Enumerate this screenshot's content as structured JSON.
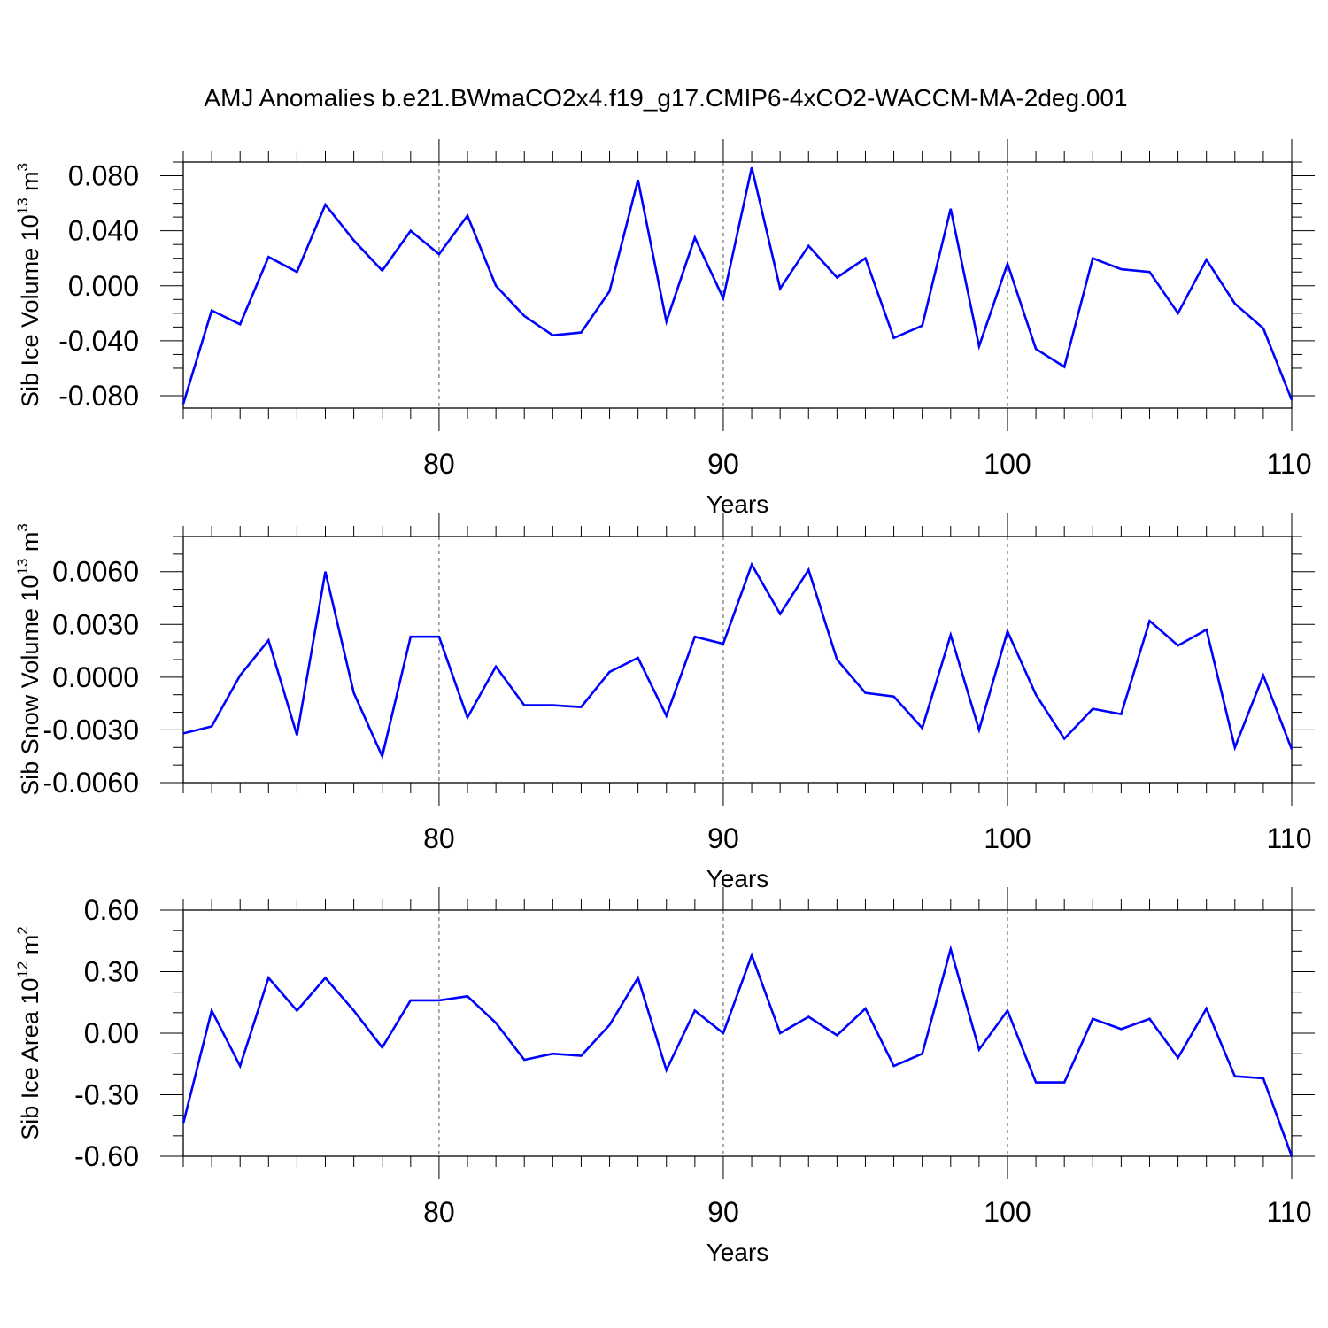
{
  "title": "AMJ Anomalies b.e21.BWmaCO2x4.f19_g17.CMIP6-4xCO2-WACCM-MA-2deg.001",
  "line_color": "#0000ff",
  "chart_data": [
    {
      "type": "line",
      "xlabel": "Years",
      "ylabel_base": "Sib Ice Volume 10",
      "ylabel_exp": "13",
      "ylabel_unit": " m",
      "ylabel_unit_exp": "3",
      "xlim": [
        71,
        110
      ],
      "ylim": [
        -0.089,
        0.09
      ],
      "x_ticks": [
        80,
        90,
        100,
        110
      ],
      "y_ticks": [
        -0.08,
        -0.04,
        0.0,
        0.04,
        0.08
      ],
      "y_tick_labels": [
        "-0.080",
        "-0.040",
        "0.000",
        "0.040",
        "0.080"
      ],
      "y_minor_step": 0.01,
      "grid_x": [
        80,
        90,
        100
      ],
      "x": [
        71,
        72,
        73,
        74,
        75,
        76,
        77,
        78,
        79,
        80,
        81,
        82,
        83,
        84,
        85,
        86,
        87,
        88,
        89,
        90,
        91,
        92,
        93,
        94,
        95,
        96,
        97,
        98,
        99,
        100,
        101,
        102,
        103,
        104,
        105,
        106,
        107,
        108,
        109,
        110
      ],
      "series": [
        {
          "values": [
            -0.086,
            -0.018,
            -0.028,
            0.021,
            0.01,
            0.059,
            0.033,
            0.011,
            0.04,
            0.023,
            0.051,
            0.0,
            -0.022,
            -0.036,
            -0.034,
            -0.004,
            0.077,
            -0.026,
            0.035,
            -0.009,
            0.086,
            -0.002,
            0.029,
            0.006,
            0.02,
            -0.038,
            -0.029,
            0.056,
            -0.044,
            0.016,
            -0.046,
            -0.059,
            0.02,
            0.012,
            0.01,
            -0.02,
            0.019,
            -0.013,
            -0.031,
            -0.083
          ]
        }
      ]
    },
    {
      "type": "line",
      "xlabel": "Years",
      "ylabel_base": "Sib Snow Volume 10",
      "ylabel_exp": "13",
      "ylabel_unit": " m",
      "ylabel_unit_exp": "3",
      "xlim": [
        71,
        110
      ],
      "ylim": [
        -0.006,
        0.008
      ],
      "x_ticks": [
        80,
        90,
        100,
        110
      ],
      "y_ticks": [
        -0.006,
        -0.003,
        0.0,
        0.003,
        0.006
      ],
      "y_tick_labels": [
        "-0.0060",
        "-0.0030",
        "0.0000",
        "0.0030",
        "0.0060"
      ],
      "y_minor_step": 0.001,
      "grid_x": [
        80,
        90,
        100
      ],
      "x": [
        71,
        72,
        73,
        74,
        75,
        76,
        77,
        78,
        79,
        80,
        81,
        82,
        83,
        84,
        85,
        86,
        87,
        88,
        89,
        90,
        91,
        92,
        93,
        94,
        95,
        96,
        97,
        98,
        99,
        100,
        101,
        102,
        103,
        104,
        105,
        106,
        107,
        108,
        109,
        110
      ],
      "series": [
        {
          "values": [
            -0.0032,
            -0.0028,
            0.0001,
            0.0021,
            -0.0033,
            0.006,
            -0.0009,
            -0.0045,
            0.0023,
            0.0023,
            -0.0023,
            0.0006,
            -0.0016,
            -0.0016,
            -0.0017,
            0.0003,
            0.0011,
            -0.0022,
            0.0023,
            0.0019,
            0.0064,
            0.0036,
            0.0061,
            0.001,
            -0.0009,
            -0.0011,
            -0.0029,
            0.0024,
            -0.003,
            0.0026,
            -0.001,
            -0.0035,
            -0.0018,
            -0.0021,
            0.0032,
            0.0018,
            0.0027,
            -0.004,
            0.0001,
            -0.0041
          ]
        }
      ]
    },
    {
      "type": "line",
      "xlabel": "Years",
      "ylabel_base": "Sib Ice Area 10",
      "ylabel_exp": "12",
      "ylabel_unit": " m",
      "ylabel_unit_exp": "2",
      "xlim": [
        71,
        110
      ],
      "ylim": [
        -0.6,
        0.6
      ],
      "x_ticks": [
        80,
        90,
        100,
        110
      ],
      "y_ticks": [
        -0.6,
        -0.3,
        0.0,
        0.3,
        0.6
      ],
      "y_tick_labels": [
        "-0.60",
        "-0.30",
        "0.00",
        "0.30",
        "0.60"
      ],
      "y_minor_step": 0.1,
      "grid_x": [
        80,
        90,
        100
      ],
      "x": [
        71,
        72,
        73,
        74,
        75,
        76,
        77,
        78,
        79,
        80,
        81,
        82,
        83,
        84,
        85,
        86,
        87,
        88,
        89,
        90,
        91,
        92,
        93,
        94,
        95,
        96,
        97,
        98,
        99,
        100,
        101,
        102,
        103,
        104,
        105,
        106,
        107,
        108,
        109,
        110
      ],
      "series": [
        {
          "values": [
            -0.44,
            0.11,
            -0.16,
            0.27,
            0.11,
            0.27,
            0.11,
            -0.07,
            0.16,
            0.16,
            0.18,
            0.05,
            -0.13,
            -0.1,
            -0.11,
            0.04,
            0.27,
            -0.18,
            0.11,
            0.0,
            0.38,
            0.0,
            0.08,
            -0.01,
            0.12,
            -0.16,
            -0.1,
            0.41,
            -0.08,
            0.11,
            -0.24,
            -0.24,
            0.07,
            0.02,
            0.07,
            -0.12,
            0.12,
            -0.21,
            -0.22,
            -0.6
          ]
        }
      ]
    }
  ]
}
